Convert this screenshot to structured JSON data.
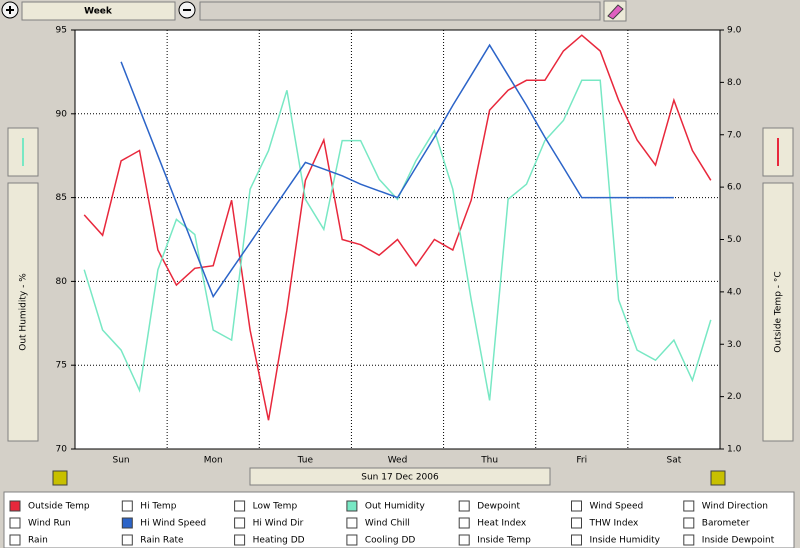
{
  "toolbar": {
    "range": "Week"
  },
  "date_label": "Sun 17 Dec 2006",
  "checklist": [
    {
      "label": "Outside Temp",
      "checked": true
    },
    {
      "label": "Hi Temp",
      "checked": false
    },
    {
      "label": "Low Temp",
      "checked": false
    },
    {
      "label": "Out Humidity",
      "checked": true
    },
    {
      "label": "Dewpoint",
      "checked": false
    },
    {
      "label": "Wind Speed",
      "checked": false
    },
    {
      "label": "Wind Direction",
      "checked": false
    },
    {
      "label": "Wind Run",
      "checked": false
    },
    {
      "label": "Hi Wind Speed",
      "checked": true
    },
    {
      "label": "Hi Wind Dir",
      "checked": false
    },
    {
      "label": "Wind Chill",
      "checked": false
    },
    {
      "label": "Heat Index",
      "checked": false
    },
    {
      "label": "THW Index",
      "checked": false
    },
    {
      "label": "Barometer",
      "checked": false
    },
    {
      "label": "Rain",
      "checked": false
    },
    {
      "label": "Rain Rate",
      "checked": false
    },
    {
      "label": "Heating DD",
      "checked": false
    },
    {
      "label": "Cooling DD",
      "checked": false
    },
    {
      "label": "Inside Temp",
      "checked": false
    },
    {
      "label": "Inside Humidity",
      "checked": false
    },
    {
      "label": "Inside Dewpoint",
      "checked": false
    }
  ],
  "chart_data": {
    "type": "line",
    "y_label": "Out Humidity - %",
    "y2_label": "Outside Temp - °C",
    "categories": [
      null,
      null,
      "Sun",
      null,
      null,
      null,
      null,
      "Mon",
      null,
      null,
      null,
      null,
      "Tue",
      null,
      null,
      null,
      null,
      "Wed",
      null,
      null,
      null,
      null,
      "Thu",
      null,
      null,
      null,
      null,
      "Fri",
      null,
      null,
      null,
      null,
      "Sat",
      null,
      null
    ],
    "series": [
      {
        "color": "#e8283c",
        "axis": "y2",
        "values": [
          5.47,
          5.08,
          6.5,
          6.7,
          4.8,
          4.13,
          4.45,
          4.5,
          5.75,
          3.27,
          1.55,
          3.65,
          6.13,
          6.9,
          5.0,
          4.9,
          4.7,
          5.0,
          4.5,
          5.0,
          4.8,
          5.75,
          7.47,
          7.85,
          8.04,
          8.04,
          8.6,
          8.9,
          8.6,
          7.66,
          6.9,
          6.42,
          7.66,
          6.7,
          6.13
        ]
      },
      {
        "color": "#78e8c4",
        "values": [
          80.7,
          77.1,
          75.9,
          73.5,
          80.7,
          83.7,
          82.8,
          77.1,
          76.5,
          85.5,
          87.8,
          91.4,
          84.9,
          83.1,
          88.4,
          88.4,
          86.1,
          84.9,
          87.2,
          89.0,
          85.5,
          78.9,
          72.9,
          84.9,
          85.8,
          88.4,
          89.6,
          92.0,
          92.0,
          78.9,
          75.9,
          75.3,
          76.5,
          74.1,
          77.7
        ]
      },
      {
        "color": "#2c64c8",
        "values": [
          null,
          null,
          93.1,
          90.3,
          87.5,
          84.7,
          81.9,
          79.1,
          80.7,
          82.3,
          83.9,
          85.5,
          87.1,
          86.7,
          86.3,
          85.8,
          85.4,
          85.0,
          86.8,
          88.6,
          90.5,
          92.3,
          94.1,
          92.3,
          90.5,
          88.6,
          86.8,
          85.0,
          85.0,
          85.0,
          85.0,
          85.0,
          85.0,
          null,
          null
        ]
      }
    ],
    "ylim": [
      70,
      95
    ],
    "yticks": [
      70,
      75,
      80,
      85,
      90,
      95
    ],
    "y2lim": [
      1,
      9
    ],
    "y2ticks": [
      {
        "value": 1,
        "label": "1.0"
      },
      {
        "value": 2,
        "label": "2.0"
      },
      {
        "value": 3,
        "label": "3.0"
      },
      {
        "value": 4,
        "label": "4.0"
      },
      {
        "value": 5,
        "label": "5.0"
      },
      {
        "value": 6,
        "label": "6.0"
      },
      {
        "value": 7,
        "label": "7.0"
      },
      {
        "value": 8,
        "label": "8.0"
      },
      {
        "value": 9,
        "label": "9.0"
      }
    ],
    "grid": true
  }
}
